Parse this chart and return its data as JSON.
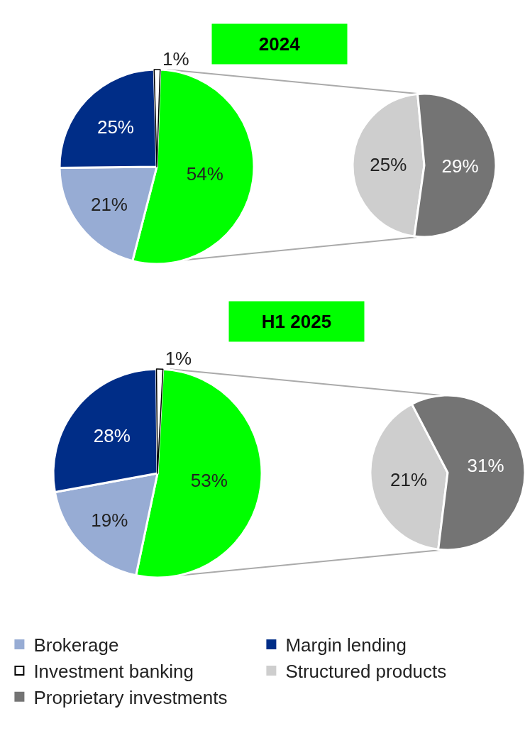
{
  "chart_data": [
    {
      "type": "pie",
      "title": "2024",
      "categories": [
        null,
        "Brokerage",
        "Margin lending",
        "Investment banking"
      ],
      "values": [
        54,
        21,
        25,
        1
      ],
      "colors": [
        "#00ff00",
        "#97acd4",
        "#002d87",
        "#ffffff"
      ],
      "value_labels": [
        "54%",
        "21%",
        "25%",
        "1%"
      ],
      "legend": "bottom"
    },
    {
      "type": "pie",
      "categories": [
        "Structured products",
        "Proprietary investments"
      ],
      "values": [
        25,
        29
      ],
      "colors": [
        "#cecece",
        "#747474"
      ],
      "value_labels": [
        "25%",
        "29%"
      ],
      "legend": "bottom"
    },
    {
      "type": "pie",
      "title": "H1 2025",
      "categories": [
        null,
        null,
        null,
        null
      ],
      "values": [
        53,
        19,
        28,
        1
      ],
      "colors": [
        "#00ff00",
        "#97acd4",
        "#002d87",
        "#ffffff"
      ],
      "value_labels": [
        "53%",
        "19%",
        "28%",
        "1%"
      ]
    },
    {
      "type": "pie",
      "categories": [
        null,
        null
      ],
      "values": [
        21,
        31
      ],
      "colors": [
        "#cecece",
        "#747474"
      ],
      "value_labels": [
        "21%",
        "31%"
      ]
    }
  ]
}
